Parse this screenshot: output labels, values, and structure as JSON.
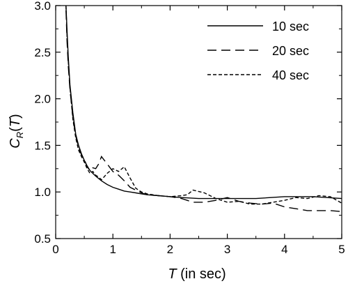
{
  "chart_data": {
    "type": "line",
    "xlabel": {
      "var": "T",
      "rest": " (in sec)"
    },
    "ylabel": {
      "base": "C",
      "sub": "R",
      "open": "(",
      "var": "T",
      "close": ")"
    },
    "xlim": [
      0,
      5
    ],
    "ylim": [
      0.5,
      3.0
    ],
    "xticks": [
      0,
      1,
      2,
      3,
      4,
      5
    ],
    "yticks": [
      0.5,
      1.0,
      1.5,
      2.0,
      2.5,
      3.0
    ],
    "xtick_labels": [
      "0",
      "1",
      "2",
      "3",
      "4",
      "5"
    ],
    "ytick_labels": [
      "0.5",
      "1.0",
      "1.5",
      "2.0",
      "2.5",
      "3.0"
    ],
    "grid": false,
    "legend_position": "top-right",
    "series": [
      {
        "name": "10 sec",
        "style": "solid",
        "x": [
          0.18,
          0.2,
          0.22,
          0.25,
          0.3,
          0.35,
          0.4,
          0.45,
          0.5,
          0.55,
          0.6,
          0.7,
          0.8,
          0.9,
          1.0,
          1.1,
          1.2,
          1.3,
          1.4,
          1.5,
          1.6,
          1.7,
          1.8,
          2.0,
          2.2,
          2.5,
          2.8,
          3.0,
          3.5,
          4.0,
          4.5,
          5.0
        ],
        "values": [
          3.0,
          2.72,
          2.45,
          2.15,
          1.85,
          1.62,
          1.5,
          1.41,
          1.34,
          1.28,
          1.23,
          1.17,
          1.12,
          1.08,
          1.05,
          1.03,
          1.01,
          1.0,
          0.99,
          0.98,
          0.97,
          0.965,
          0.96,
          0.95,
          0.94,
          0.93,
          0.93,
          0.93,
          0.93,
          0.95,
          0.95,
          0.93
        ]
      },
      {
        "name": "20 sec",
        "style": "dashed",
        "x": [
          0.18,
          0.2,
          0.22,
          0.25,
          0.3,
          0.35,
          0.4,
          0.45,
          0.5,
          0.55,
          0.6,
          0.65,
          0.7,
          0.75,
          0.8,
          0.9,
          1.0,
          1.1,
          1.2,
          1.3,
          1.4,
          1.5,
          1.6,
          1.8,
          2.0,
          2.2,
          2.4,
          2.6,
          2.8,
          3.0,
          3.2,
          3.4,
          3.6,
          3.8,
          4.0,
          4.2,
          4.4,
          4.6,
          4.8,
          5.0
        ],
        "values": [
          2.95,
          2.6,
          2.35,
          2.1,
          1.8,
          1.6,
          1.48,
          1.4,
          1.35,
          1.27,
          1.23,
          1.26,
          1.25,
          1.3,
          1.38,
          1.3,
          1.22,
          1.18,
          1.12,
          1.05,
          1.02,
          0.99,
          0.97,
          0.96,
          0.95,
          0.93,
          0.89,
          0.89,
          0.91,
          0.94,
          0.9,
          0.88,
          0.87,
          0.88,
          0.84,
          0.82,
          0.8,
          0.8,
          0.8,
          0.79
        ]
      },
      {
        "name": "40 sec",
        "style": "dotted",
        "x": [
          0.18,
          0.2,
          0.22,
          0.25,
          0.3,
          0.35,
          0.4,
          0.45,
          0.5,
          0.55,
          0.6,
          0.65,
          0.7,
          0.75,
          0.8,
          0.9,
          1.0,
          1.1,
          1.2,
          1.3,
          1.4,
          1.5,
          1.6,
          1.8,
          2.0,
          2.2,
          2.3,
          2.4,
          2.6,
          2.8,
          3.0,
          3.2,
          3.4,
          3.6,
          3.8,
          4.0,
          4.2,
          4.4,
          4.6,
          4.8,
          5.0
        ],
        "values": [
          3.0,
          2.65,
          2.4,
          2.12,
          1.78,
          1.58,
          1.45,
          1.38,
          1.32,
          1.25,
          1.2,
          1.22,
          1.18,
          1.16,
          1.13,
          1.2,
          1.25,
          1.22,
          1.27,
          1.15,
          1.04,
          1.0,
          0.98,
          0.96,
          0.95,
          0.96,
          0.97,
          1.02,
          0.99,
          0.93,
          0.89,
          0.9,
          0.87,
          0.87,
          0.89,
          0.91,
          0.94,
          0.93,
          0.96,
          0.95,
          0.88
        ]
      }
    ]
  }
}
